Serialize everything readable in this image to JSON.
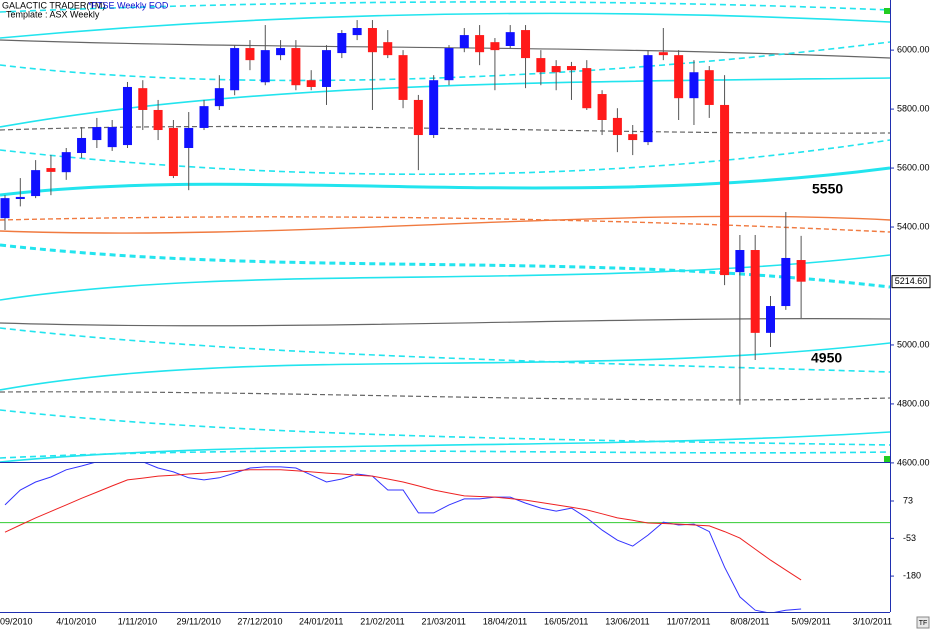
{
  "header": {
    "app": "GALACTIC TRADER(TM)",
    "symbol": "*FTSE Weekly EOD",
    "template": "Template : ASX Weekly",
    "button": "TF"
  },
  "chart_data": [
    {
      "type": "candlestick",
      "categories": [
        "/09/2010",
        null,
        null,
        null,
        "4/10/2010",
        null,
        null,
        null,
        "1/11/2010",
        null,
        null,
        null,
        "29/11/2010",
        null,
        null,
        null,
        "27/12/2010",
        null,
        null,
        null,
        "24/01/2011",
        null,
        null,
        null,
        "21/02/2011",
        null,
        null,
        null,
        "21/03/2011",
        null,
        null,
        null,
        "18/04/2011",
        null,
        null,
        null,
        "16/05/2011",
        null,
        null,
        null,
        "13/06/2011",
        null,
        null,
        null,
        "11/07/2011",
        null,
        null,
        null,
        "8/08/2011",
        null,
        null,
        null,
        "5/09/2011",
        null,
        null,
        null,
        "3/10/2011"
      ],
      "open": [
        5430,
        5495,
        5505,
        5600,
        5586,
        5651,
        5695,
        5671,
        5678,
        5871,
        5797,
        5736,
        5668,
        5736,
        5810,
        5864,
        6007,
        5891,
        5983,
        6007,
        5898,
        5875,
        5990,
        6051,
        6075,
        6027,
        5983,
        5831,
        5712,
        5898,
        6007,
        6051,
        6027,
        6014,
        6068,
        5973,
        5946,
        5946,
        5939,
        5851,
        5770,
        5715,
        5688,
        5993,
        5983,
        5837,
        5932,
        5814,
        5247,
        5322,
        5041,
        5132,
        5288,
        null,
        null,
        null,
        null
      ],
      "high": [
        5508,
        5566,
        5627,
        5644,
        5668,
        5739,
        5770,
        5763,
        5892,
        5898,
        5831,
        5763,
        5790,
        5831,
        5915,
        6017,
        6034,
        6085,
        6034,
        6034,
        5932,
        6017,
        6068,
        6102,
        6102,
        6068,
        6000,
        5848,
        5915,
        6017,
        6075,
        6085,
        6041,
        6085,
        6085,
        6000,
        5966,
        5960,
        5966,
        5864,
        5803,
        5746,
        6000,
        6075,
        6000,
        5966,
        5946,
        5915,
        5373,
        5373,
        5166,
        5451,
        5370,
        null,
        null,
        null,
        null
      ],
      "low": [
        5390,
        5470,
        5498,
        5508,
        5560,
        5634,
        5668,
        5658,
        5668,
        5729,
        5695,
        5566,
        5525,
        5729,
        5797,
        5847,
        5932,
        5881,
        5966,
        5864,
        5864,
        5814,
        5973,
        6034,
        5797,
        5973,
        5803,
        5593,
        5702,
        5881,
        5993,
        5949,
        5864,
        6007,
        5871,
        5881,
        5864,
        5831,
        5797,
        5712,
        5654,
        5644,
        5678,
        5966,
        5763,
        5746,
        5770,
        5203,
        4797,
        4949,
        4993,
        5119,
        5091,
        null,
        null,
        null,
        null
      ],
      "close": [
        5498,
        5502,
        5593,
        5587,
        5654,
        5702,
        5739,
        5739,
        5875,
        5797,
        5729,
        5573,
        5736,
        5810,
        5871,
        6007,
        5966,
        6000,
        6007,
        5881,
        5875,
        6000,
        6058,
        6075,
        5993,
        5983,
        5831,
        5712,
        5898,
        6007,
        6051,
        5993,
        6000,
        6061,
        5973,
        5925,
        5925,
        5932,
        5803,
        5763,
        5712,
        5695,
        5983,
        5983,
        5837,
        5925,
        5814,
        5237,
        5322,
        5041,
        5132,
        5295,
        5214.6,
        null,
        null,
        null,
        null
      ],
      "up_color": "#1010ff",
      "down_color": "#ff1a1a",
      "wick_color": "#555555",
      "ylim": [
        4603,
        6170
      ],
      "yticks": [
        {
          "value": 6000,
          "label": "6000.00"
        },
        {
          "value": 5800,
          "label": "5800.00"
        },
        {
          "value": 5600,
          "label": "5600.00"
        },
        {
          "value": 5400,
          "label": "5400.00"
        },
        {
          "value": 5000,
          "label": "5000.00"
        },
        {
          "value": 4800,
          "label": "4800.00"
        },
        {
          "value": 4600,
          "label": "4600.00"
        }
      ],
      "last_price": {
        "value": 5214.6,
        "label": "5214.60"
      },
      "annotations": [
        "5550",
        "4950"
      ]
    },
    {
      "type": "line",
      "series": [
        {
          "color": "#3333ff",
          "values": [
            60,
            110,
            137,
            154,
            178,
            191,
            205,
            210,
            206,
            205,
            184,
            171,
            151,
            144,
            151,
            167,
            184,
            188,
            188,
            184,
            161,
            137,
            147,
            164,
            157,
            110,
            110,
            33,
            33,
            60,
            80,
            80,
            86,
            86,
            66,
            49,
            39,
            49,
            16,
            -25,
            -59,
            -79,
            -42,
            2,
            -8,
            -5,
            -30,
            -150,
            -250,
            -295,
            -305,
            -295,
            -291,
            null,
            null,
            null,
            null
          ]
        },
        {
          "color": "#ee2222",
          "values": [
            -32,
            -8,
            16,
            38,
            60,
            82,
            103,
            124,
            144,
            150,
            157,
            160,
            164,
            167,
            171,
            175,
            178,
            178,
            178,
            175,
            171,
            167,
            164,
            160,
            157,
            147,
            137,
            124,
            110,
            100,
            90,
            88,
            86,
            81,
            76,
            68,
            60,
            52,
            43,
            30,
            16,
            8,
            -1,
            -3,
            -5,
            -8,
            -11,
            -30,
            -52,
            -89,
            -126,
            -160,
            -193,
            null,
            null,
            null,
            null
          ]
        }
      ],
      "ylim": [
        -301,
        201
      ],
      "yticks": [
        73,
        -53,
        -180
      ],
      "hline": 0,
      "hline_color": "#33cc33"
    }
  ]
}
